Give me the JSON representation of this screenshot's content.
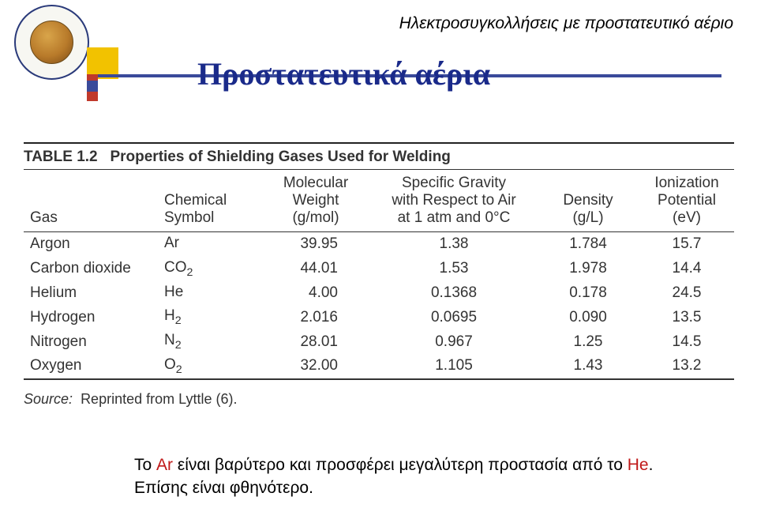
{
  "header": {
    "right_text": "Ηλεκτροσυγκολλήσεις με προστατευτικό αέριο"
  },
  "title": "Προστατευτικά αέρια",
  "table": {
    "label": "TABLE 1.2",
    "caption": "Properties of Shielding Gases Used for Welding",
    "columns": {
      "gas": "Gas",
      "symbol_l1": "Chemical",
      "symbol_l2": "Symbol",
      "mw_l1": "Molecular",
      "mw_l2": "Weight",
      "mw_l3": "(g/mol)",
      "sg_l1": "Specific Gravity",
      "sg_l2": "with Respect to Air",
      "sg_l3": "at 1 atm and 0°C",
      "den_l1": "Density",
      "den_l2": "(g/L)",
      "ion_l1": "Ionization",
      "ion_l2": "Potential",
      "ion_l3": "(eV)"
    },
    "rows": [
      {
        "gas": "Argon",
        "sym": "Ar",
        "sub": "",
        "mw": "39.95",
        "sg": "1.38",
        "den": "1.784",
        "ion": "15.7"
      },
      {
        "gas": "Carbon dioxide",
        "sym": "CO",
        "sub": "2",
        "mw": "44.01",
        "sg": "1.53",
        "den": "1.978",
        "ion": "14.4"
      },
      {
        "gas": "Helium",
        "sym": "He",
        "sub": "",
        "mw": "4.00",
        "sg": "0.1368",
        "den": "0.178",
        "ion": "24.5"
      },
      {
        "gas": "Hydrogen",
        "sym": "H",
        "sub": "2",
        "mw": "2.016",
        "sg": "0.0695",
        "den": "0.090",
        "ion": "13.5"
      },
      {
        "gas": "Nitrogen",
        "sym": "N",
        "sub": "2",
        "mw": "28.01",
        "sg": "0.967",
        "den": "1.25",
        "ion": "14.5"
      },
      {
        "gas": "Oxygen",
        "sym": "O",
        "sub": "2",
        "mw": "32.00",
        "sg": "1.105",
        "den": "1.43",
        "ion": "13.2"
      }
    ],
    "source_label": "Source:",
    "source_text": "Reprinted from Lyttle (6)."
  },
  "footer": {
    "line1_a": "Το ",
    "line1_ar": "Ar",
    "line1_b": " είναι βαρύτερο και προσφέρει μεγαλύτερη προστασία από το ",
    "line1_he": "He",
    "line1_c": ".",
    "line2": "Επίσης είναι φθηνότερο."
  }
}
